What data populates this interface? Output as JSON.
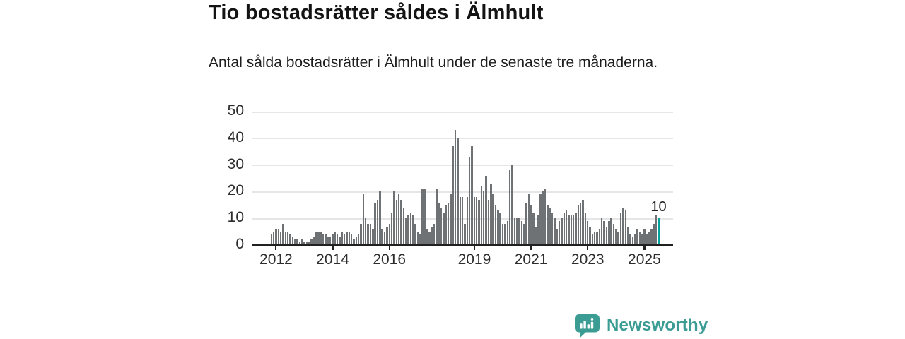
{
  "header": {
    "title": "Tio bostadsrätter såldes i Älmhult",
    "subtitle": "Antal sålda bostadsrätter i Älmhult under de senaste tre månaderna."
  },
  "chart_data": {
    "type": "bar",
    "title": "Tio bostadsrätter såldes i Älmhult",
    "description": "Antal sålda bostadsrätter i Älmhult per månad",
    "x_unit": "month",
    "x_range_start": "2011-11",
    "x_range_end": "2025-07",
    "values": [
      4,
      5,
      6,
      6,
      5,
      8,
      5,
      5,
      4,
      3,
      2,
      2,
      1,
      2,
      1,
      1,
      1,
      2,
      3,
      5,
      5,
      5,
      4,
      4,
      3,
      3,
      4,
      5,
      4,
      3,
      5,
      4,
      5,
      5,
      4,
      2,
      3,
      4,
      8,
      19,
      10,
      8,
      8,
      6,
      16,
      17,
      20,
      6,
      5,
      7,
      8,
      12,
      20,
      17,
      19,
      17,
      14,
      10,
      11,
      12,
      11,
      8,
      5,
      4,
      21,
      21,
      6,
      5,
      7,
      8,
      21,
      16,
      14,
      12,
      15,
      16,
      19,
      37,
      43,
      40,
      18,
      18,
      8,
      18,
      33,
      37,
      18,
      18,
      17,
      22,
      20,
      26,
      17,
      23,
      19,
      15,
      13,
      12,
      8,
      8,
      9,
      28,
      30,
      10,
      10,
      10,
      9,
      8,
      16,
      19,
      15,
      12,
      7,
      11,
      19,
      20,
      21,
      15,
      14,
      12,
      10,
      6,
      9,
      10,
      12,
      13,
      11,
      11,
      11,
      12,
      15,
      16,
      17,
      12,
      9,
      7,
      4,
      5,
      5,
      6,
      10,
      9,
      7,
      9,
      10,
      8,
      6,
      5,
      12,
      14,
      13,
      7,
      4,
      3,
      4,
      6,
      5,
      4,
      6,
      4,
      5,
      6,
      8,
      11,
      10
    ],
    "highlight": {
      "index": 164,
      "value": 10,
      "label": "10",
      "color": "#00a29b"
    },
    "bar_color": "#6f7275",
    "xticks": [
      2012,
      2014,
      2016,
      2019,
      2021,
      2023,
      2025
    ],
    "yticks": [
      0,
      10,
      20,
      30,
      40,
      50
    ],
    "ylim": [
      0,
      50
    ],
    "grid": true,
    "legend": "none"
  },
  "footer": {
    "brand": "Newsworthy"
  },
  "colors": {
    "accent_teal": "#00a29b",
    "brand_teal": "#3b9c94",
    "bar_gray": "#6f7275",
    "axis": "#212121",
    "gridline": "#e6e6e6"
  }
}
